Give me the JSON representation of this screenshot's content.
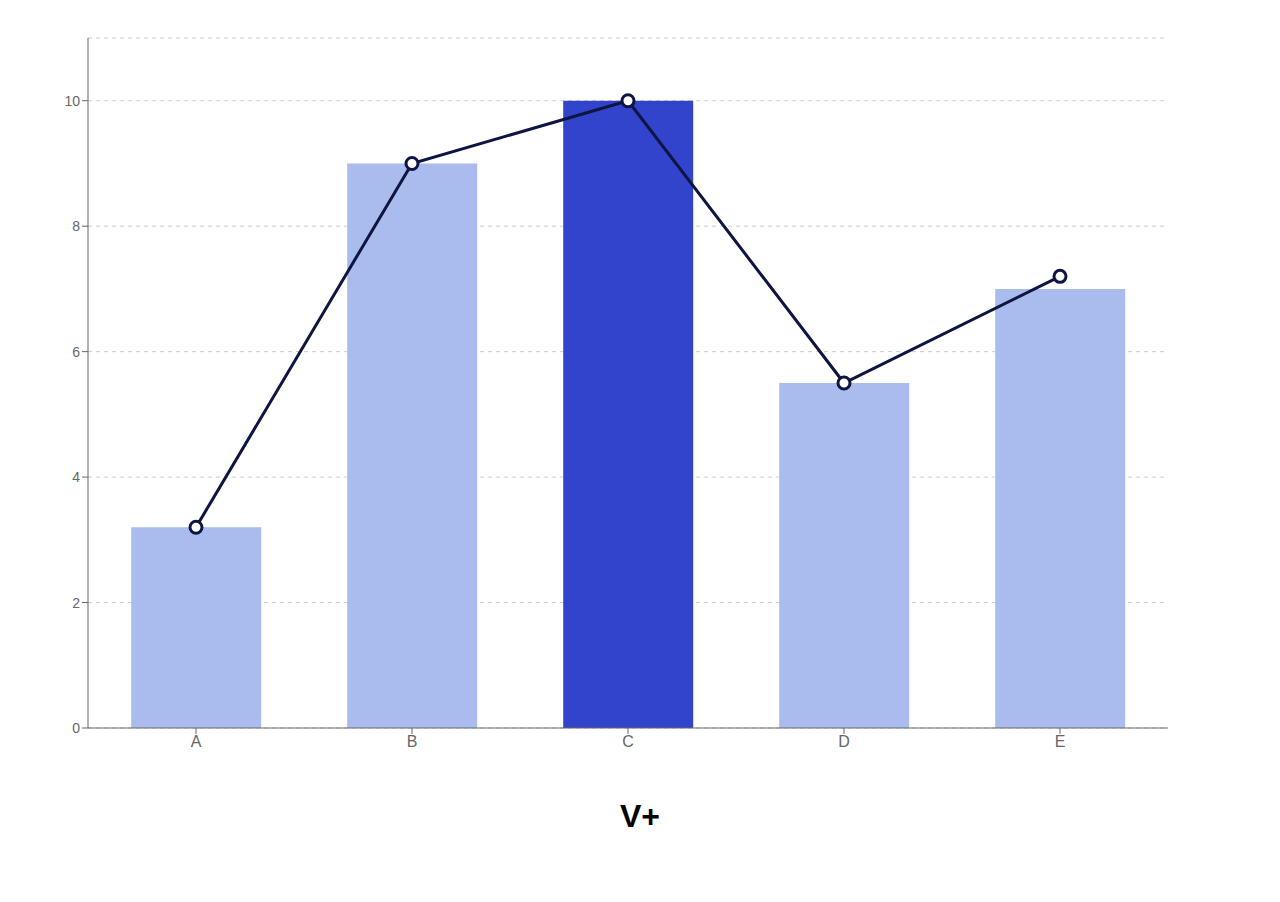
{
  "chart_data": {
    "type": "bar",
    "categories": [
      "A",
      "B",
      "C",
      "D",
      "E"
    ],
    "series": [
      {
        "type": "bar",
        "colors": [
          "#aabbee",
          "#aabbee",
          "#3344cc",
          "#aabbee",
          "#aabbee"
        ],
        "values": [
          3.2,
          9.0,
          10.0,
          5.5,
          7.0
        ]
      },
      {
        "type": "line",
        "color": "#0d1540",
        "marker": "circle",
        "values": [
          3.2,
          9.0,
          10.0,
          5.5,
          7.2
        ]
      }
    ],
    "ylim": [
      0,
      11
    ],
    "yticks": [
      0,
      2,
      4,
      6,
      8,
      10
    ],
    "grid": true,
    "annotations": [
      "V+"
    ]
  }
}
